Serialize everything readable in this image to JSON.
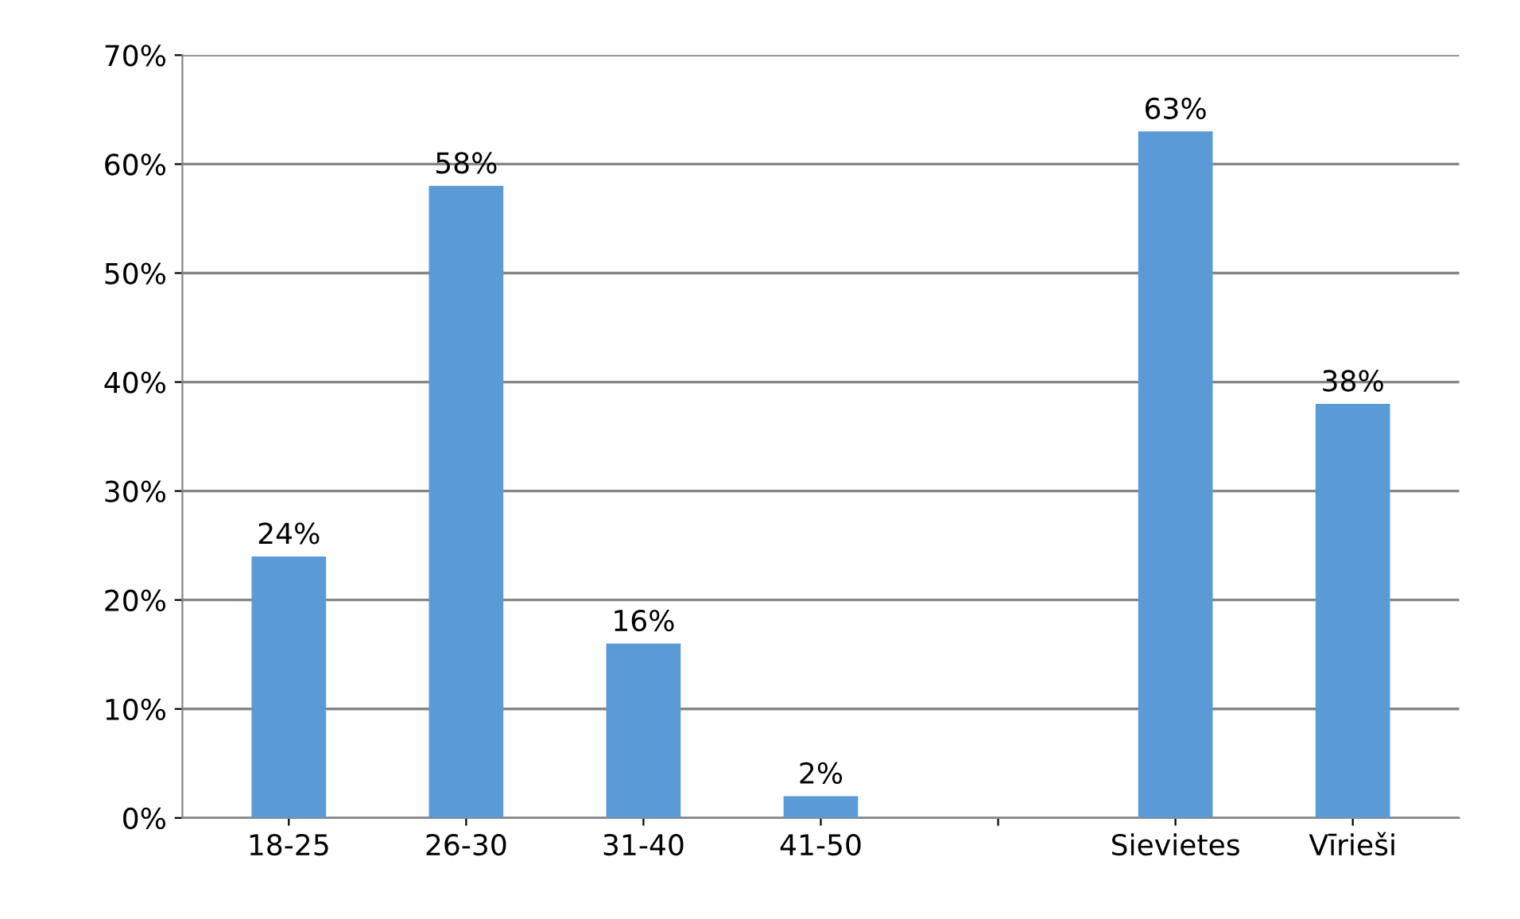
{
  "chart_data": {
    "type": "bar",
    "categories": [
      "18-25",
      "26-30",
      "31-40",
      "41-50",
      null,
      "Sievietes",
      "Vīrieši"
    ],
    "values": [
      24,
      58,
      16,
      2,
      null,
      63,
      38
    ],
    "value_labels": [
      "24%",
      "58%",
      "16%",
      "2%",
      null,
      "63%",
      "38%"
    ],
    "color": "#5b9bd5",
    "ylim": [
      0,
      70
    ],
    "yticks": [
      {
        "value": 0,
        "label": "0%"
      },
      {
        "value": 10,
        "label": "10%"
      },
      {
        "value": 20,
        "label": "20%"
      },
      {
        "value": 30,
        "label": "30%"
      },
      {
        "value": 40,
        "label": "40%"
      },
      {
        "value": 50,
        "label": "50%"
      },
      {
        "value": 60,
        "label": "60%"
      },
      {
        "value": 70,
        "label": "70%"
      }
    ],
    "grid": "y"
  }
}
